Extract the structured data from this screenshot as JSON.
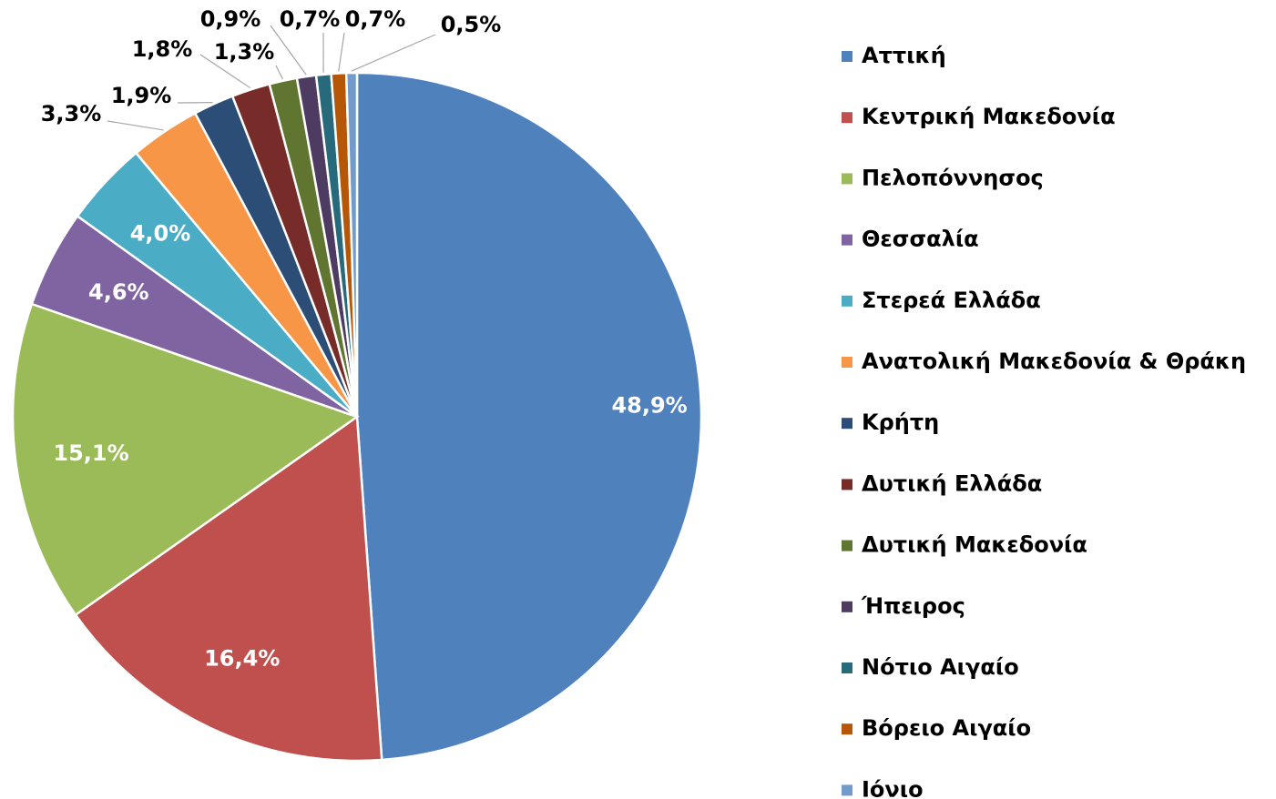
{
  "chart_data": {
    "type": "pie",
    "categories": [
      "Αττική",
      "Κεντρική Μακεδονία",
      "Πελοπόννησος",
      "Θεσσαλία",
      "Στερεά Ελλάδα",
      "Ανατολική Μακεδονία & Θράκη",
      "Κρήτη",
      "Δυτική Ελλάδα",
      "Δυτική Μακεδονία",
      "Ήπειρος",
      "Νότιο Αιγαίο",
      "Βόρειο Αιγαίο",
      "Ιόνιο"
    ],
    "values": [
      48.9,
      16.4,
      15.1,
      4.6,
      4.0,
      3.3,
      1.9,
      1.8,
      1.3,
      0.9,
      0.7,
      0.7,
      0.5
    ],
    "value_labels": [
      "48,9%",
      "16,4%",
      "15,1%",
      "4,6%",
      "4,0%",
      "3,3%",
      "1,9%",
      "1,8%",
      "1,3%",
      "0,9%",
      "0,7%",
      "0,7%",
      "0,5%"
    ],
    "colors": [
      "#4f81bd",
      "#c0504d",
      "#9bbb59",
      "#8064a2",
      "#4bacc6",
      "#f79646",
      "#2c4d75",
      "#772c2a",
      "#5f7530",
      "#4d3b62",
      "#276a7c",
      "#b65708",
      "#729aca"
    ],
    "legend": "right"
  }
}
